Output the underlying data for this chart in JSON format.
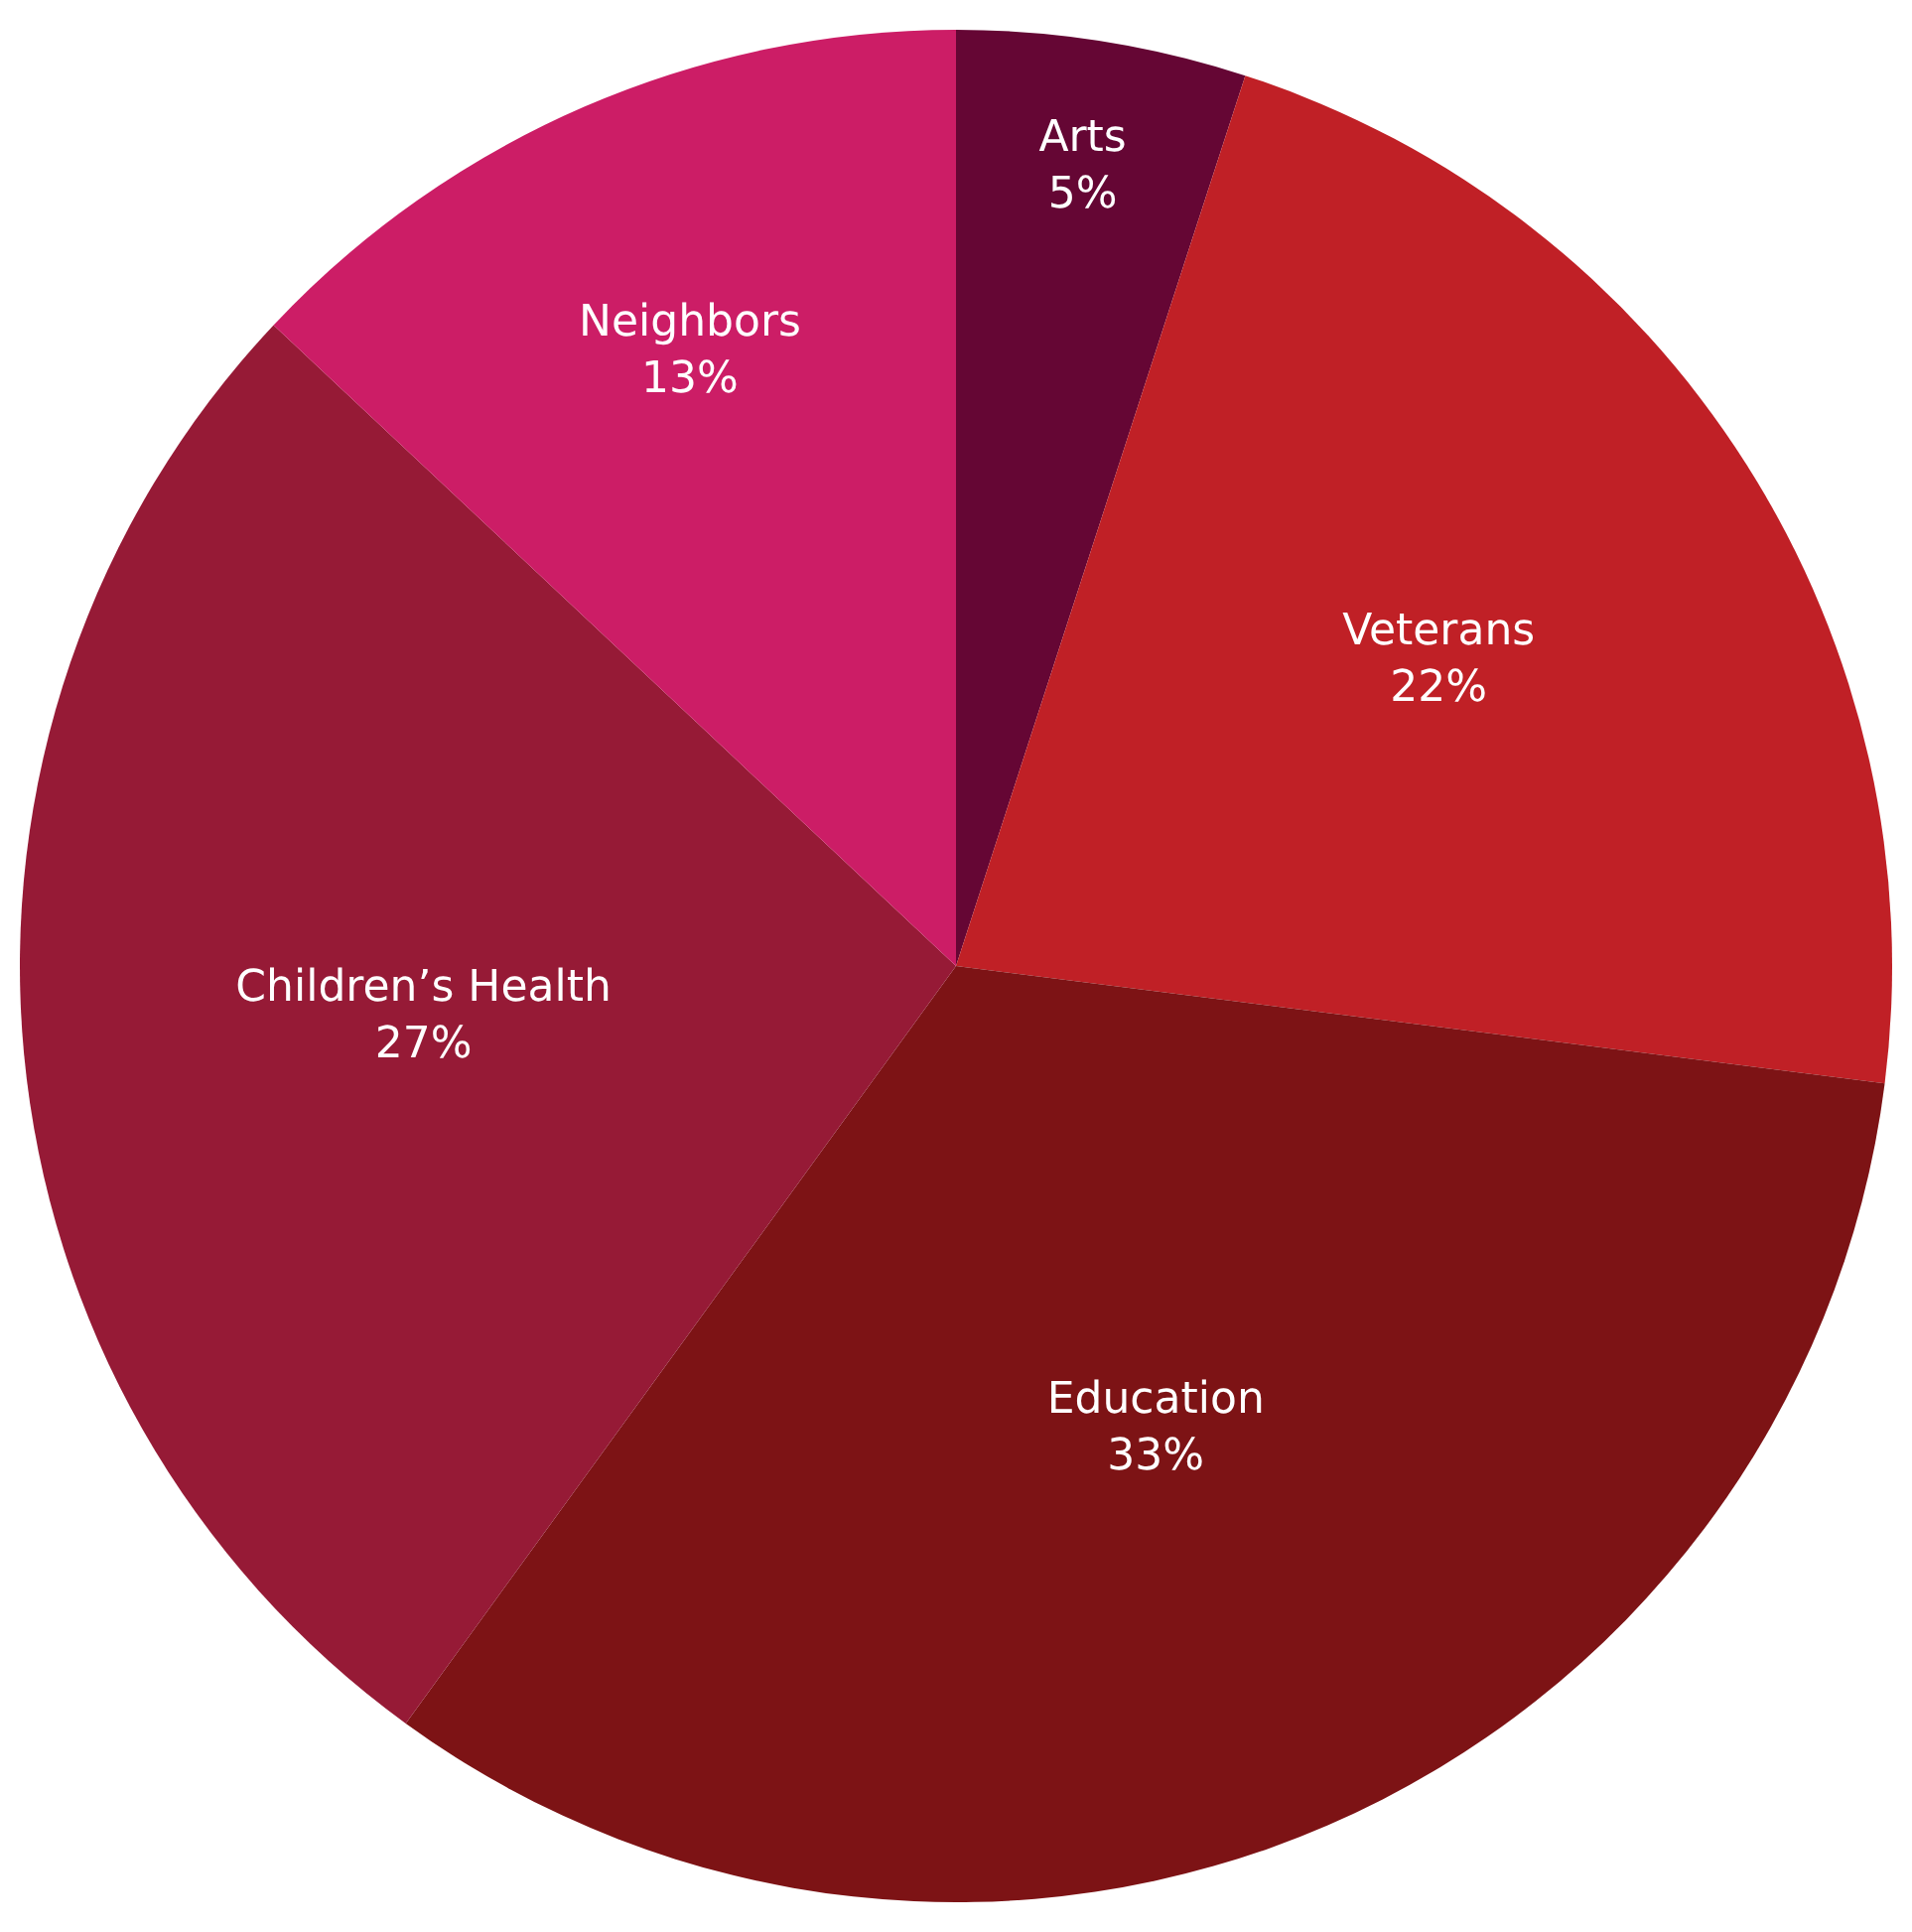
{
  "chart_data": {
    "type": "pie",
    "categories": [
      "Arts",
      "Veterans",
      "Education",
      "Children’s Health",
      "Neighbors"
    ],
    "values": [
      5,
      22,
      33,
      27,
      13
    ],
    "value_labels": [
      "5%",
      "22%",
      "33%",
      "27%",
      "13%"
    ],
    "colors": [
      "#650634",
      "#c02026",
      "#7d1315",
      "#961a36",
      "#cc1d66"
    ],
    "legend": false
  }
}
